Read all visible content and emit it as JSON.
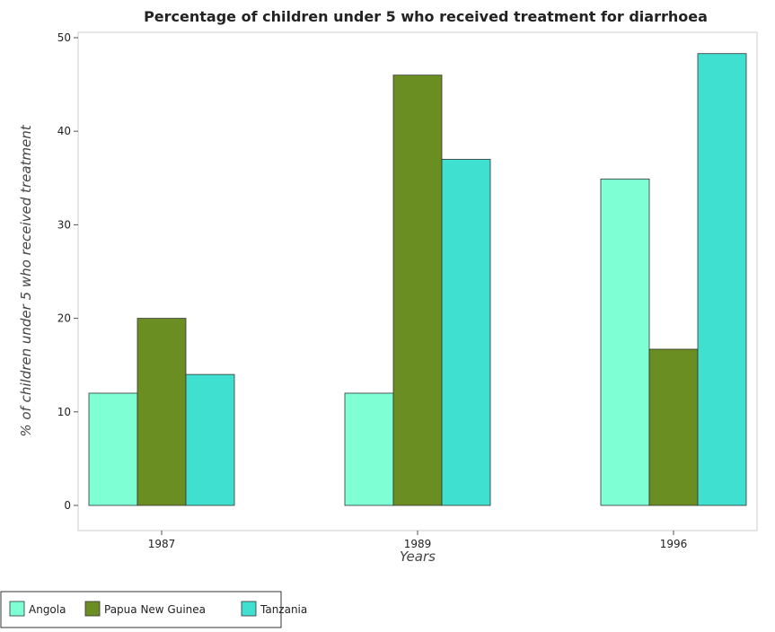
{
  "chart_data": {
    "type": "bar",
    "title": "Percentage of children under 5 who received treatment for diarrhoea",
    "xlabel": "Years",
    "ylabel": "% of children under 5 who received treatment",
    "categories": [
      "1987",
      "1989",
      "1996"
    ],
    "series": [
      {
        "name": "Angola",
        "values": [
          12.0,
          12.0,
          34.9
        ],
        "color": "#7FFFD4"
      },
      {
        "name": "Papua New Guinea",
        "values": [
          20.0,
          46.0,
          16.7
        ],
        "color": "#6B8E23"
      },
      {
        "name": "Tanzania",
        "values": [
          14.0,
          37.0,
          48.3
        ],
        "color": "#40E0D0"
      }
    ],
    "ylim": [
      0,
      50
    ],
    "yticks": [
      0,
      10,
      20,
      30,
      40,
      50
    ],
    "grid": false,
    "legend_position": "bottom-left"
  }
}
